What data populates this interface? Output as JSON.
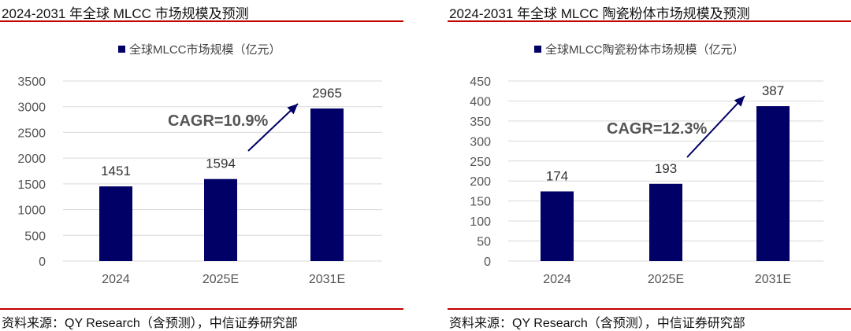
{
  "chart_data": [
    {
      "type": "bar",
      "title": "2024-2031 年全球 MLCC 市场规模及预测",
      "legend": "全球MLCC市场规模（亿元）",
      "legend_position": "top",
      "categories": [
        "2024",
        "2025E",
        "2031E"
      ],
      "values": [
        1451,
        1594,
        2965
      ],
      "ylim": [
        0,
        3500
      ],
      "yticks": [
        0,
        500,
        1000,
        1500,
        2000,
        2500,
        3000,
        3500
      ],
      "grid": true,
      "annotation": "CAGR=10.9%",
      "bar_color": "#000066",
      "source": "资料来源：QY Research（含预测），中信证券研究部"
    },
    {
      "type": "bar",
      "title": "2024-2031 年全球 MLCC 陶瓷粉体市场规模及预测",
      "legend": "全球MLCC陶瓷粉体市场规模（亿元）",
      "legend_position": "top",
      "categories": [
        "2024",
        "2025E",
        "2031E"
      ],
      "values": [
        174,
        193,
        387
      ],
      "ylim": [
        0,
        450
      ],
      "yticks": [
        0,
        50,
        100,
        150,
        200,
        250,
        300,
        350,
        400,
        450
      ],
      "grid": true,
      "annotation": "CAGR=12.3%",
      "bar_color": "#000066",
      "source": "资料来源：QY Research（含预测），中信证券研究部"
    }
  ]
}
